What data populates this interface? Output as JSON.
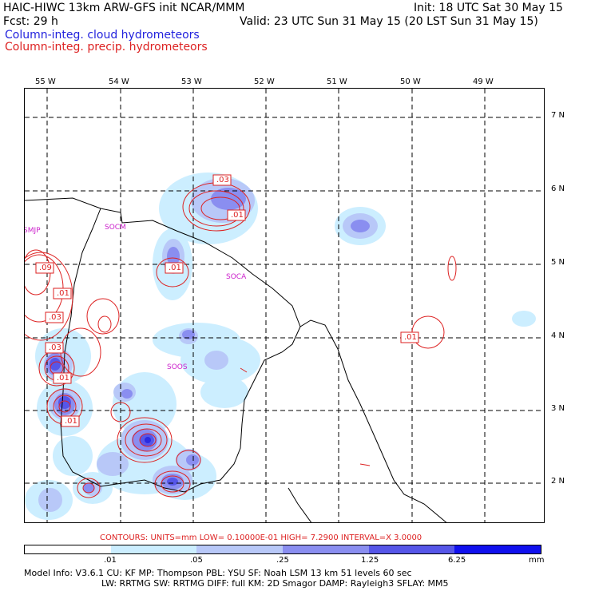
{
  "header": {
    "line1_left": "HAIC-HIWC 13km ARW-GFS init   NCAR/MMM",
    "line1_right": "Init: 18 UTC Sat 30 May 15",
    "line2_left": "Fcst:    29 h",
    "line2_right": "Valid: 23 UTC Sun 31 May 15 (20 LST Sun 31 May 15)",
    "legend_blue": "Column-integ. cloud hydrometeors",
    "legend_red": "Column-integ. precip. hydrometeors"
  },
  "colors": {
    "cloud_shades": [
      "#ffffff",
      "#cceeff",
      "#b8c8f8",
      "#8a8ef0",
      "#5656e8",
      "#2a2ae0",
      "#1010ee"
    ],
    "precip_contour": "#dd2222",
    "station_label": "#cc22cc"
  },
  "axes": {
    "longitudes": [
      "55 W",
      "54 W",
      "53 W",
      "52 W",
      "51 W",
      "50 W",
      "49 W"
    ],
    "latitudes": [
      "7 N",
      "6 N",
      "5 N",
      "4 N",
      "3 N",
      "2 N"
    ]
  },
  "stations": [
    {
      "label": "SMJP"
    },
    {
      "label": "SOCM"
    },
    {
      "label": "SOCA"
    },
    {
      "label": "SOOS"
    }
  ],
  "contour_labels": [
    ".03",
    ".01",
    ".01",
    ".09",
    ".01",
    ".03",
    ".03",
    ".01",
    ".01",
    ".01"
  ],
  "contours_info": "CONTOURS:  UNITS=mm   LOW= 0.10000E-01   HIGH=  7.2900       INTERVAL=X  3.0000",
  "colorbar": {
    "labels": [
      ".01",
      ".05",
      ".25",
      "1.25",
      "6.25"
    ],
    "units": "mm"
  },
  "model_info": {
    "line1": "Model Info: V3.6.1     CU: KF        MP: Thompson      PBL: YSU        SF: Noah LSM      13 km    51 levels    60 sec",
    "line2": "LW: RRTMG     SW: RRTMG   DIFF: full     KM: 2D Smagor DAMP: Rayleigh3   SFLAY: MM5"
  }
}
